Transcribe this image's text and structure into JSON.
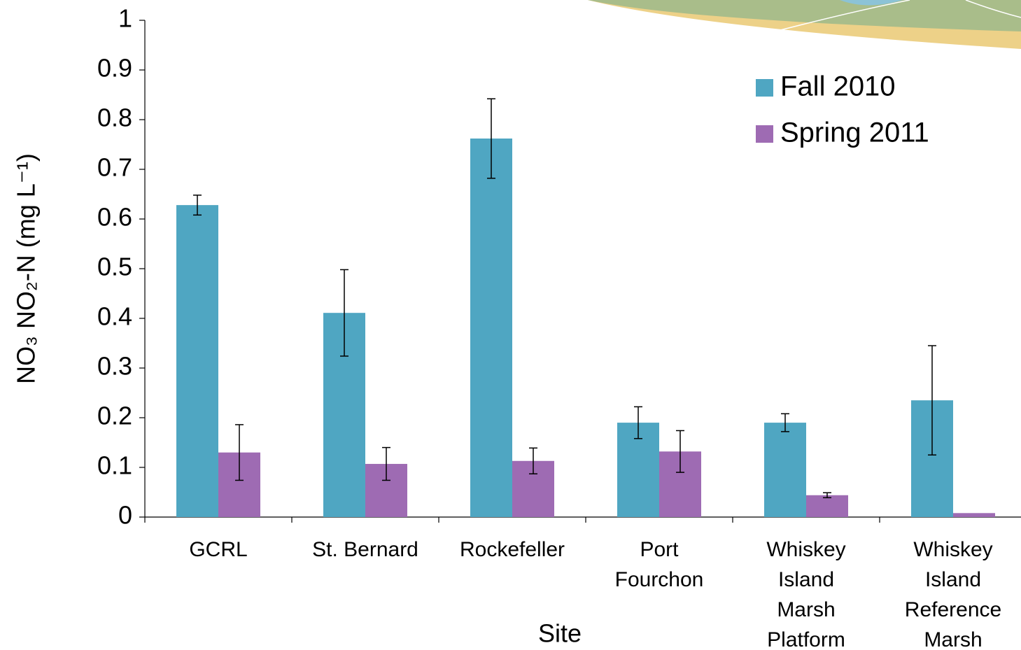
{
  "chart_data": {
    "type": "bar",
    "x_label": "Site",
    "y_label": "NO₃ NO₂-N (mg L⁻¹)",
    "categories": [
      "GCRL",
      "St. Bernard",
      "Rockefeller",
      "Port\nFourchon",
      "Whiskey\nIsland\nMarsh\nPlatform",
      "Whiskey\nIsland\nReference\nMarsh"
    ],
    "series": [
      {
        "name": "Fall 2010",
        "color": "#4fa6c2",
        "values": [
          0.628,
          0.411,
          0.762,
          0.19,
          0.19,
          0.235
        ],
        "errors": [
          0.02,
          0.087,
          0.08,
          0.032,
          0.018,
          0.11
        ]
      },
      {
        "name": "Spring 2011",
        "color": "#9e6bb3",
        "values": [
          0.13,
          0.107,
          0.113,
          0.132,
          0.044,
          0.008
        ],
        "errors": [
          0.056,
          0.033,
          0.026,
          0.042,
          0.005,
          null
        ]
      }
    ],
    "ylim": [
      0,
      1
    ],
    "yticks": [
      0,
      0.1,
      0.2,
      0.3,
      0.4,
      0.5,
      0.6,
      0.7,
      0.8,
      0.9,
      1
    ],
    "grid": false,
    "legend": "upper right"
  }
}
